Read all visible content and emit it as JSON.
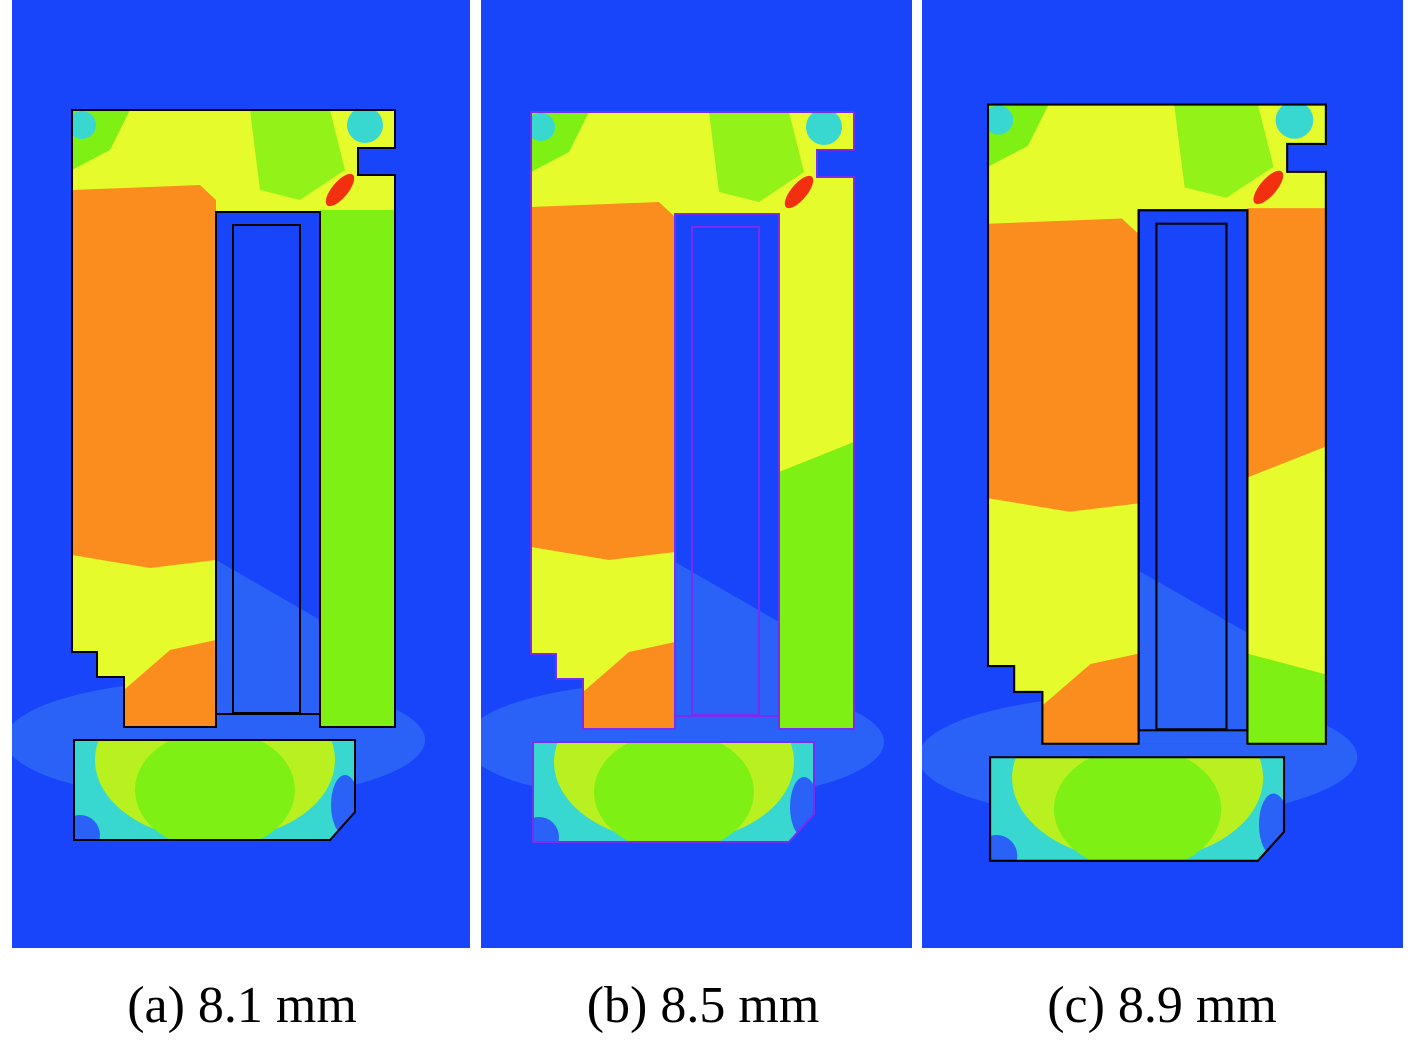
{
  "figure": {
    "panels": [
      {
        "caption": "(a) 8.1 mm"
      },
      {
        "caption": "(b) 8.5 mm"
      },
      {
        "caption": "(c) 8.9 mm"
      }
    ]
  }
}
